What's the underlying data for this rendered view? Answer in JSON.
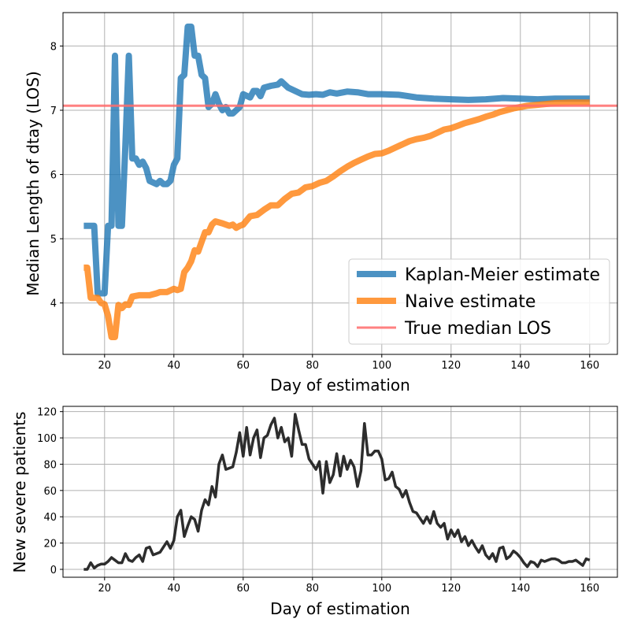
{
  "colors": {
    "km": "#1f77b4",
    "naive": "#ff7f0e",
    "true_los": "#ff6b6b",
    "new_patients": "#222222",
    "grid": "#b0b0b0"
  },
  "chart_data": [
    {
      "type": "line",
      "xlabel": "Day of estimation",
      "ylabel": "Median Length of dtay (LOS)",
      "xlim": [
        8,
        168
      ],
      "ylim": [
        3.2,
        8.52
      ],
      "xticks": [
        20,
        40,
        60,
        80,
        100,
        120,
        140,
        160
      ],
      "xtick_labels": [
        "20",
        "40",
        "60",
        "80",
        "100",
        "120",
        "140",
        "160"
      ],
      "yticks": [
        4,
        5,
        6,
        7,
        8
      ],
      "ytick_labels": [
        "4",
        "5",
        "6",
        "7",
        "8"
      ],
      "grid": true,
      "legend_position": "lower-right",
      "series": [
        {
          "name": "Kaplan-Meier estimate",
          "points": [
            [
              14,
              5.2
            ],
            [
              17,
              5.2
            ],
            [
              18,
              4.15
            ],
            [
              20,
              4.15
            ],
            [
              21,
              5.2
            ],
            [
              22,
              5.2
            ],
            [
              23,
              7.85
            ],
            [
              24,
              5.2
            ],
            [
              25,
              5.2
            ],
            [
              26,
              6.45
            ],
            [
              27,
              7.85
            ],
            [
              28,
              6.25
            ],
            [
              29,
              6.25
            ],
            [
              30,
              6.15
            ],
            [
              31,
              6.2
            ],
            [
              32,
              6.1
            ],
            [
              33,
              5.9
            ],
            [
              35,
              5.85
            ],
            [
              36,
              5.9
            ],
            [
              37,
              5.85
            ],
            [
              38,
              5.85
            ],
            [
              39,
              5.9
            ],
            [
              40,
              6.15
            ],
            [
              41,
              6.25
            ],
            [
              42,
              7.5
            ],
            [
              43,
              7.55
            ],
            [
              44,
              8.3
            ],
            [
              45,
              8.3
            ],
            [
              46,
              7.85
            ],
            [
              47,
              7.85
            ],
            [
              48,
              7.55
            ],
            [
              49,
              7.5
            ],
            [
              50,
              7.05
            ],
            [
              51,
              7.1
            ],
            [
              52,
              7.25
            ],
            [
              53,
              7.1
            ],
            [
              54,
              7.0
            ],
            [
              55,
              7.05
            ],
            [
              56,
              6.95
            ],
            [
              57,
              6.95
            ],
            [
              58,
              7.0
            ],
            [
              59,
              7.05
            ],
            [
              60,
              7.25
            ],
            [
              62,
              7.2
            ],
            [
              63,
              7.3
            ],
            [
              64,
              7.3
            ],
            [
              65,
              7.22
            ],
            [
              66,
              7.35
            ],
            [
              68,
              7.38
            ],
            [
              70,
              7.4
            ],
            [
              71,
              7.45
            ],
            [
              73,
              7.35
            ],
            [
              75,
              7.3
            ],
            [
              77,
              7.25
            ],
            [
              79,
              7.24
            ],
            [
              81,
              7.25
            ],
            [
              83,
              7.24
            ],
            [
              85,
              7.28
            ],
            [
              87,
              7.26
            ],
            [
              90,
              7.29
            ],
            [
              93,
              7.28
            ],
            [
              96,
              7.25
            ],
            [
              100,
              7.25
            ],
            [
              105,
              7.24
            ],
            [
              110,
              7.2
            ],
            [
              115,
              7.18
            ],
            [
              120,
              7.17
            ],
            [
              125,
              7.16
            ],
            [
              130,
              7.17
            ],
            [
              135,
              7.19
            ],
            [
              140,
              7.18
            ],
            [
              145,
              7.17
            ],
            [
              150,
              7.18
            ],
            [
              155,
              7.18
            ],
            [
              160,
              7.18
            ]
          ]
        },
        {
          "name": "Naive estimate",
          "points": [
            [
              14,
              4.55
            ],
            [
              15,
              4.55
            ],
            [
              16,
              4.08
            ],
            [
              18,
              4.08
            ],
            [
              19,
              4.0
            ],
            [
              20,
              3.98
            ],
            [
              21,
              3.8
            ],
            [
              22,
              3.47
            ],
            [
              23,
              3.47
            ],
            [
              24,
              3.97
            ],
            [
              25,
              3.92
            ],
            [
              26,
              3.98
            ],
            [
              27,
              3.97
            ],
            [
              28,
              4.1
            ],
            [
              30,
              4.12
            ],
            [
              33,
              4.12
            ],
            [
              35,
              4.15
            ],
            [
              36,
              4.17
            ],
            [
              38,
              4.17
            ],
            [
              40,
              4.22
            ],
            [
              41,
              4.2
            ],
            [
              42,
              4.22
            ],
            [
              43,
              4.48
            ],
            [
              44,
              4.55
            ],
            [
              45,
              4.65
            ],
            [
              46,
              4.82
            ],
            [
              47,
              4.8
            ],
            [
              48,
              4.95
            ],
            [
              49,
              5.1
            ],
            [
              50,
              5.1
            ],
            [
              51,
              5.22
            ],
            [
              52,
              5.27
            ],
            [
              54,
              5.24
            ],
            [
              56,
              5.2
            ],
            [
              57,
              5.22
            ],
            [
              58,
              5.17
            ],
            [
              59,
              5.2
            ],
            [
              60,
              5.22
            ],
            [
              62,
              5.35
            ],
            [
              64,
              5.37
            ],
            [
              66,
              5.45
            ],
            [
              68,
              5.52
            ],
            [
              70,
              5.52
            ],
            [
              72,
              5.62
            ],
            [
              74,
              5.7
            ],
            [
              76,
              5.72
            ],
            [
              78,
              5.8
            ],
            [
              80,
              5.82
            ],
            [
              82,
              5.87
            ],
            [
              84,
              5.9
            ],
            [
              86,
              5.97
            ],
            [
              88,
              6.05
            ],
            [
              90,
              6.12
            ],
            [
              92,
              6.18
            ],
            [
              94,
              6.23
            ],
            [
              96,
              6.28
            ],
            [
              98,
              6.32
            ],
            [
              100,
              6.33
            ],
            [
              102,
              6.37
            ],
            [
              104,
              6.42
            ],
            [
              106,
              6.47
            ],
            [
              108,
              6.52
            ],
            [
              110,
              6.55
            ],
            [
              112,
              6.57
            ],
            [
              114,
              6.6
            ],
            [
              116,
              6.65
            ],
            [
              118,
              6.7
            ],
            [
              120,
              6.72
            ],
            [
              122,
              6.76
            ],
            [
              124,
              6.8
            ],
            [
              126,
              6.83
            ],
            [
              128,
              6.86
            ],
            [
              130,
              6.9
            ],
            [
              132,
              6.93
            ],
            [
              134,
              6.97
            ],
            [
              136,
              7.0
            ],
            [
              138,
              7.03
            ],
            [
              140,
              7.05
            ],
            [
              142,
              7.07
            ],
            [
              144,
              7.08
            ],
            [
              146,
              7.09
            ],
            [
              148,
              7.1
            ],
            [
              150,
              7.11
            ],
            [
              155,
              7.12
            ],
            [
              160,
              7.12
            ]
          ]
        },
        {
          "name": "True median LOS",
          "points": [
            [
              8,
              7.07
            ],
            [
              168,
              7.07
            ]
          ]
        }
      ]
    },
    {
      "type": "line",
      "xlabel": "Day of estimation",
      "ylabel": "New severe patients",
      "xlim": [
        8,
        168
      ],
      "ylim": [
        -6,
        124
      ],
      "xticks": [
        20,
        40,
        60,
        80,
        100,
        120,
        140,
        160
      ],
      "xtick_labels": [
        "20",
        "40",
        "60",
        "80",
        "100",
        "120",
        "140",
        "160"
      ],
      "yticks": [
        0,
        20,
        40,
        60,
        80,
        100,
        120
      ],
      "ytick_labels": [
        "0",
        "20",
        "40",
        "60",
        "80",
        "100",
        "120"
      ],
      "grid": true,
      "series": [
        {
          "x": [
            14,
            15,
            16,
            17,
            18,
            19,
            20,
            21,
            22,
            23,
            24,
            25,
            26,
            27,
            28,
            29,
            30,
            31,
            32,
            33,
            34,
            35,
            36,
            37,
            38,
            39,
            40,
            41,
            42,
            43,
            44,
            45,
            46,
            47,
            48,
            49,
            50,
            51,
            52,
            53,
            54,
            55,
            56,
            57,
            58,
            59,
            60,
            61,
            62,
            63,
            64,
            65,
            66,
            67,
            68,
            69,
            70,
            71,
            72,
            73,
            74,
            75,
            76,
            77,
            78,
            79,
            80,
            81,
            82,
            83,
            84,
            85,
            86,
            87,
            88,
            89,
            90,
            91,
            92,
            93,
            94,
            95,
            96,
            97,
            98,
            99,
            100,
            101,
            102,
            103,
            104,
            105,
            106,
            107,
            108,
            109,
            110,
            111,
            112,
            113,
            114,
            115,
            116,
            117,
            118,
            119,
            120,
            121,
            122,
            123,
            124,
            125,
            126,
            127,
            128,
            129,
            130,
            131,
            132,
            133,
            134,
            135,
            136,
            137,
            138,
            139,
            140,
            141,
            142,
            143,
            144,
            145,
            146,
            147,
            148,
            149,
            150,
            151,
            152,
            153,
            154,
            155,
            156,
            157,
            158,
            159,
            160
          ],
          "values": [
            0,
            0,
            5,
            1,
            3,
            4,
            4,
            6,
            9,
            7,
            5,
            5,
            12,
            7,
            6,
            9,
            11,
            6,
            16,
            17,
            11,
            12,
            13,
            17,
            21,
            16,
            22,
            40,
            45,
            25,
            33,
            40,
            38,
            29,
            45,
            53,
            49,
            63,
            55,
            80,
            87,
            76,
            77,
            78,
            89,
            104,
            86,
            108,
            87,
            100,
            106,
            85,
            100,
            102,
            110,
            115,
            100,
            108,
            97,
            100,
            86,
            118,
            106,
            95,
            95,
            84,
            80,
            76,
            82,
            58,
            82,
            66,
            72,
            88,
            71,
            86,
            76,
            83,
            78,
            63,
            75,
            111,
            87,
            87,
            90,
            90,
            84,
            68,
            69,
            74,
            63,
            61,
            55,
            60,
            51,
            44,
            43,
            39,
            35,
            40,
            35,
            44,
            35,
            32,
            35,
            23,
            30,
            25,
            30,
            21,
            25,
            18,
            22,
            17,
            13,
            18,
            11,
            8,
            12,
            6,
            16,
            17,
            8,
            10,
            14,
            12,
            9,
            5,
            2,
            6,
            5,
            2,
            7,
            6,
            7,
            8,
            8,
            7,
            5,
            5,
            6,
            6,
            7,
            5,
            3,
            8,
            7
          ]
        }
      ]
    }
  ]
}
